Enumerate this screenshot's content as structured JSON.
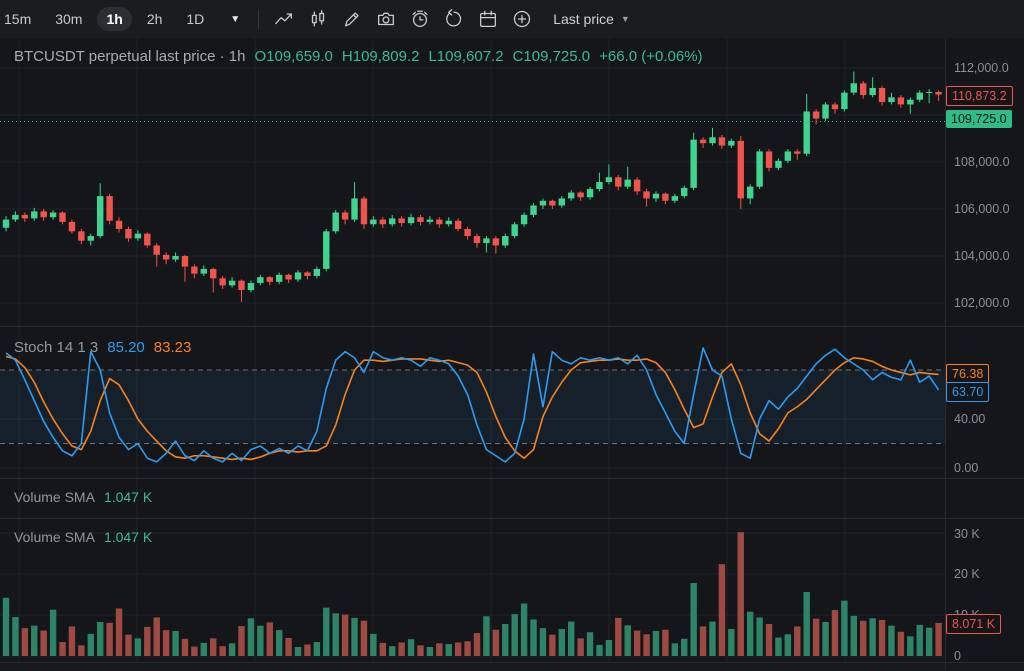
{
  "toolbar": {
    "timeframes": [
      "15m",
      "30m",
      "1h",
      "2h",
      "1D"
    ],
    "active_timeframe": "1h",
    "icons": [
      "chart-line-icon",
      "candles-icon",
      "draw-icon",
      "camera-icon",
      "alert-clock-icon",
      "replay-icon",
      "calendar-icon",
      "add-circle-icon"
    ],
    "price_source": "Last price"
  },
  "price_panel": {
    "legend_symbol": "BTCUSDT perpetual last price · 1h",
    "ohlc": {
      "open": "O109,659.0",
      "high": "H109,809.2",
      "low": "L109,607.2",
      "close": "C109,725.0",
      "change": "+66.0 (+0.06%)"
    },
    "axis_ticks": [
      "112,000.0",
      "110,000.0",
      "108,000.0",
      "106,000.0",
      "104,000.0",
      "102,000.0"
    ],
    "current_close_label": "110,873.2",
    "last_price_label": "109,725.0"
  },
  "stoch_panel": {
    "title": "Stoch 14 1 3",
    "k_value": "85.20",
    "d_value": "83.23",
    "axis_ticks": [
      "40.00",
      "0.00"
    ],
    "d_label": "76.38",
    "k_label": "63.70"
  },
  "volume_sma_panel": {
    "title": "Volume SMA",
    "value": "1.047 K"
  },
  "volume_panel": {
    "title": "Volume SMA",
    "value": "1.047 K",
    "axis_ticks": [
      "30 K",
      "20 K",
      "10 K",
      "0"
    ],
    "last_label": "8.071 K"
  },
  "colors": {
    "up": "#3fd48f",
    "down": "#f0544c",
    "vol_up": "#2e8467",
    "vol_down": "#9e4a42",
    "stoch_k": "#2d9bf0",
    "stoch_d": "#f7831c",
    "accent_teal": "#2ebd85",
    "grid": "#1e2227",
    "band": "rgba(45,130,200,0.10)"
  },
  "chart_data": [
    {
      "type": "candlestick",
      "panel": "price",
      "title": "BTCUSDT perpetual, 1h",
      "unit": "USD thousands",
      "y_axis": {
        "visible_min": 101.0,
        "visible_max": 113.2,
        "tick_values": [
          112,
          110,
          108,
          106,
          104,
          102
        ]
      },
      "last_price": 109.725,
      "current_close": 110.8732,
      "candles": [
        [
          105.2,
          105.7,
          105.05,
          105.55
        ],
        [
          105.55,
          105.9,
          105.45,
          105.75
        ],
        [
          105.75,
          105.85,
          105.45,
          105.6
        ],
        [
          105.6,
          106.05,
          105.5,
          105.9
        ],
        [
          105.9,
          106.0,
          105.5,
          105.65
        ],
        [
          105.65,
          105.95,
          105.55,
          105.85
        ],
        [
          105.85,
          105.9,
          105.35,
          105.45
        ],
        [
          105.45,
          105.55,
          104.95,
          105.05
        ],
        [
          105.05,
          105.15,
          104.5,
          104.65
        ],
        [
          104.65,
          104.95,
          104.45,
          104.85
        ],
        [
          104.85,
          107.1,
          104.75,
          106.55
        ],
        [
          106.55,
          106.65,
          105.35,
          105.5
        ],
        [
          105.5,
          105.65,
          105.0,
          105.15
        ],
        [
          105.15,
          105.25,
          104.6,
          104.75
        ],
        [
          104.75,
          105.1,
          104.65,
          104.95
        ],
        [
          104.95,
          105.0,
          104.35,
          104.45
        ],
        [
          104.45,
          104.55,
          103.55,
          104.05
        ],
        [
          104.05,
          104.15,
          103.65,
          103.85
        ],
        [
          103.85,
          104.15,
          103.75,
          104.0
        ],
        [
          104.0,
          104.05,
          102.9,
          103.55
        ],
        [
          103.55,
          103.65,
          103.05,
          103.25
        ],
        [
          103.25,
          103.6,
          103.15,
          103.45
        ],
        [
          103.45,
          103.5,
          102.45,
          103.05
        ],
        [
          103.05,
          103.15,
          102.6,
          102.75
        ],
        [
          102.75,
          103.1,
          102.65,
          102.95
        ],
        [
          102.95,
          103.0,
          102.05,
          102.55
        ],
        [
          102.55,
          102.95,
          102.45,
          102.85
        ],
        [
          102.85,
          103.2,
          102.75,
          103.1
        ],
        [
          103.1,
          103.15,
          102.75,
          102.9
        ],
        [
          102.9,
          103.3,
          102.8,
          103.2
        ],
        [
          103.2,
          103.25,
          102.85,
          103.0
        ],
        [
          103.0,
          103.4,
          102.9,
          103.3
        ],
        [
          103.3,
          103.35,
          103.0,
          103.15
        ],
        [
          103.15,
          103.55,
          103.05,
          103.45
        ],
        [
          103.45,
          105.15,
          103.35,
          105.05
        ],
        [
          105.05,
          105.95,
          104.95,
          105.85
        ],
        [
          105.85,
          105.95,
          105.35,
          105.55
        ],
        [
          105.55,
          107.15,
          105.45,
          106.45
        ],
        [
          106.45,
          106.55,
          105.15,
          105.35
        ],
        [
          105.35,
          105.7,
          105.25,
          105.55
        ],
        [
          105.55,
          105.65,
          105.2,
          105.35
        ],
        [
          105.35,
          105.75,
          105.25,
          105.6
        ],
        [
          105.6,
          105.7,
          105.25,
          105.4
        ],
        [
          105.4,
          105.8,
          105.3,
          105.65
        ],
        [
          105.65,
          105.75,
          105.3,
          105.45
        ],
        [
          105.45,
          105.7,
          105.35,
          105.55
        ],
        [
          105.55,
          105.65,
          105.2,
          105.35
        ],
        [
          105.35,
          105.65,
          105.25,
          105.5
        ],
        [
          105.5,
          105.6,
          105.05,
          105.15
        ],
        [
          105.15,
          105.25,
          104.7,
          104.85
        ],
        [
          104.85,
          104.95,
          104.35,
          104.55
        ],
        [
          104.55,
          104.85,
          104.15,
          104.75
        ],
        [
          104.75,
          104.85,
          104.1,
          104.45
        ],
        [
          104.45,
          104.95,
          104.35,
          104.85
        ],
        [
          104.85,
          105.45,
          104.75,
          105.35
        ],
        [
          105.35,
          105.85,
          105.25,
          105.75
        ],
        [
          105.75,
          106.25,
          105.65,
          106.15
        ],
        [
          106.15,
          106.45,
          106.0,
          106.35
        ],
        [
          106.35,
          106.4,
          106.0,
          106.15
        ],
        [
          106.15,
          106.55,
          106.05,
          106.45
        ],
        [
          106.45,
          106.8,
          106.35,
          106.7
        ],
        [
          106.7,
          106.75,
          106.35,
          106.5
        ],
        [
          106.5,
          106.95,
          106.4,
          106.85
        ],
        [
          106.85,
          107.55,
          106.75,
          107.15
        ],
        [
          107.15,
          107.9,
          107.05,
          107.35
        ],
        [
          107.35,
          107.45,
          106.8,
          106.95
        ],
        [
          106.95,
          107.8,
          106.85,
          107.25
        ],
        [
          107.25,
          107.35,
          106.6,
          106.75
        ],
        [
          106.75,
          106.85,
          106.1,
          106.45
        ],
        [
          106.45,
          106.75,
          106.3,
          106.65
        ],
        [
          106.65,
          106.7,
          106.2,
          106.35
        ],
        [
          106.35,
          106.65,
          106.25,
          106.55
        ],
        [
          106.55,
          107.0,
          106.45,
          106.9
        ],
        [
          106.9,
          109.25,
          106.8,
          108.95
        ],
        [
          108.95,
          109.05,
          108.6,
          108.8
        ],
        [
          108.8,
          109.45,
          108.7,
          109.05
        ],
        [
          109.05,
          109.15,
          108.55,
          108.7
        ],
        [
          108.7,
          109.0,
          108.6,
          108.9
        ],
        [
          108.9,
          109.1,
          106.0,
          106.45
        ],
        [
          106.45,
          107.05,
          106.2,
          106.95
        ],
        [
          106.95,
          108.55,
          106.85,
          108.45
        ],
        [
          108.45,
          108.55,
          107.6,
          107.75
        ],
        [
          107.75,
          108.15,
          107.65,
          108.05
        ],
        [
          108.05,
          108.55,
          107.95,
          108.45
        ],
        [
          108.45,
          108.55,
          108.1,
          108.35
        ],
        [
          108.35,
          110.9,
          108.25,
          110.15
        ],
        [
          110.15,
          110.25,
          109.6,
          109.85
        ],
        [
          109.85,
          110.55,
          109.75,
          110.45
        ],
        [
          110.45,
          110.55,
          110.05,
          110.25
        ],
        [
          110.25,
          111.05,
          110.15,
          110.95
        ],
        [
          110.95,
          111.85,
          110.85,
          111.35
        ],
        [
          111.35,
          111.45,
          110.7,
          110.85
        ],
        [
          110.85,
          111.6,
          110.75,
          111.15
        ],
        [
          111.15,
          111.25,
          110.4,
          110.55
        ],
        [
          110.55,
          110.95,
          110.45,
          110.75
        ],
        [
          110.75,
          110.85,
          110.3,
          110.45
        ],
        [
          110.45,
          110.75,
          110.05,
          110.65
        ],
        [
          110.65,
          111.05,
          110.55,
          110.95
        ],
        [
          110.95,
          111.1,
          110.5,
          110.98
        ],
        [
          110.98,
          111.05,
          110.6,
          110.87
        ]
      ]
    },
    {
      "type": "line",
      "panel": "stoch",
      "title": "Stochastic (14, 1, 3)",
      "ylim": [
        0,
        100
      ],
      "overbought": 80,
      "oversold": 20,
      "legend_values": {
        "k": 85.2,
        "d": 83.23
      },
      "last_values": {
        "k": 63.7,
        "d": 76.38
      },
      "series": [
        {
          "name": "%K",
          "values": [
            94,
            88,
            72,
            55,
            38,
            25,
            14,
            10,
            20,
            95,
            80,
            45,
            25,
            15,
            20,
            8,
            5,
            12,
            22,
            10,
            6,
            14,
            8,
            5,
            12,
            6,
            15,
            18,
            12,
            16,
            12,
            18,
            14,
            30,
            65,
            88,
            95,
            90,
            78,
            95,
            90,
            88,
            90,
            88,
            83,
            90,
            88,
            85,
            75,
            60,
            35,
            15,
            10,
            5,
            12,
            40,
            93,
            50,
            95,
            88,
            85,
            90,
            88,
            90,
            88,
            90,
            85,
            92,
            80,
            60,
            45,
            30,
            20,
            60,
            98,
            80,
            75,
            40,
            12,
            8,
            40,
            55,
            48,
            58,
            65,
            75,
            85,
            92,
            97,
            90,
            85,
            80,
            72,
            78,
            74,
            72,
            88,
            70,
            75,
            63.7
          ]
        },
        {
          "name": "%D",
          "values": [
            91,
            89,
            82,
            70,
            54,
            40,
            28,
            18,
            15,
            30,
            55,
            73,
            68,
            55,
            40,
            30,
            22,
            14,
            9,
            8,
            10,
            10,
            9,
            8,
            7,
            8,
            7,
            9,
            12,
            14,
            14,
            13,
            14,
            14,
            18,
            35,
            60,
            80,
            88,
            88,
            87,
            88,
            89,
            89,
            89,
            88,
            87,
            88,
            86,
            84,
            78,
            62,
            42,
            25,
            14,
            8,
            15,
            42,
            58,
            70,
            80,
            86,
            87,
            88,
            88,
            89,
            88,
            88,
            89,
            86,
            78,
            64,
            48,
            33,
            36,
            58,
            78,
            85,
            68,
            45,
            28,
            22,
            32,
            45,
            50,
            56,
            64,
            72,
            80,
            86,
            90,
            89,
            87,
            83,
            80,
            78,
            76,
            78,
            77,
            76.38
          ]
        }
      ]
    },
    {
      "type": "bar",
      "panel": "volume",
      "title": "Volume",
      "unit": "K",
      "ylim": [
        0,
        33
      ],
      "sma_value": 1.047,
      "last_value": 8.071,
      "values": [
        14.2,
        9.5,
        6.8,
        7.4,
        6.2,
        11.3,
        3.4,
        7.2,
        2.6,
        5.4,
        8.3,
        8.1,
        11.6,
        5.2,
        4.3,
        7.1,
        9.4,
        6.3,
        6.1,
        4.2,
        2.3,
        3.2,
        4.3,
        2.4,
        3.1,
        7.3,
        9.2,
        7.4,
        8.2,
        6.3,
        4.4,
        2.2,
        2.8,
        3.4,
        11.8,
        10.4,
        10.1,
        9.3,
        8.6,
        5.4,
        3.2,
        2.4,
        3.3,
        4.1,
        2.6,
        2.2,
        3.1,
        2.9,
        3.3,
        3.6,
        5.6,
        9.7,
        6.4,
        7.8,
        10.2,
        12.8,
        8.9,
        6.8,
        5.2,
        6.6,
        8.4,
        4.3,
        5.8,
        2.7,
        3.9,
        9.3,
        7.5,
        6.2,
        5.3,
        6.1,
        6.4,
        3.1,
        4.2,
        17.8,
        7.2,
        8.4,
        22.4,
        6.6,
        30.2,
        10.8,
        9.4,
        7.8,
        4.5,
        5.3,
        7.2,
        15.6,
        9.1,
        8.3,
        11.2,
        13.5,
        9.8,
        8.6,
        9.2,
        8.8,
        7.4,
        5.9,
        4.8,
        7.6,
        6.9,
        8.071
      ]
    }
  ]
}
